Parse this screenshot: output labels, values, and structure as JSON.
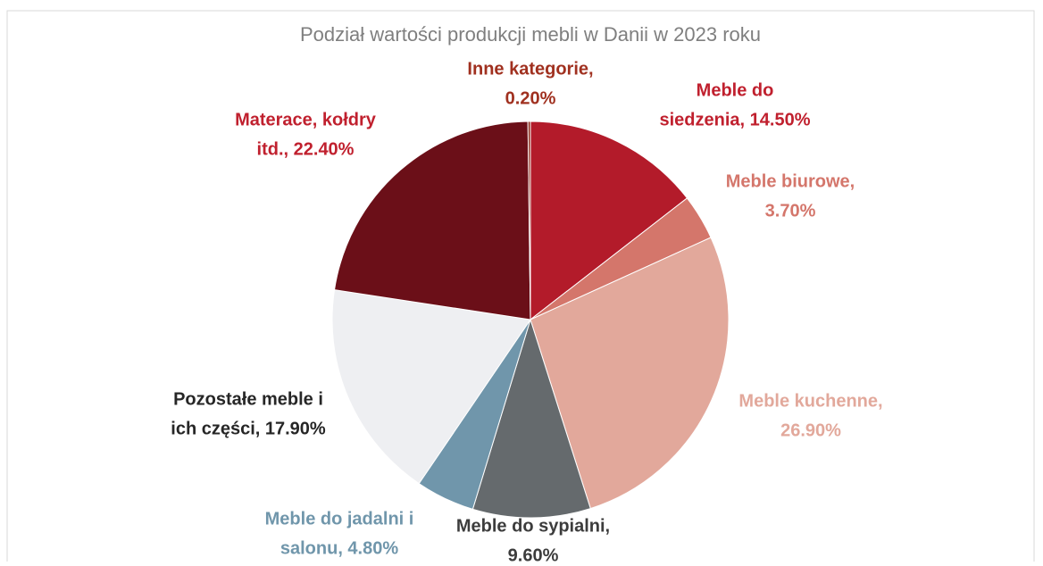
{
  "chart_data": {
    "type": "pie",
    "title": "Podział wartości produkcji mebli w Danii w 2023 roku",
    "values": [
      14.5,
      3.7,
      26.9,
      9.6,
      4.8,
      17.9,
      22.4,
      0.2
    ],
    "value_labels": [
      [
        "Meble do",
        "siedzenia, 14.50%"
      ],
      [
        "Meble biurowe,",
        "3.70%"
      ],
      [
        "Meble kuchenne,",
        "26.90%"
      ],
      [
        "Meble do sypialni,",
        "9.60%"
      ],
      [
        "Meble do jadalni i",
        "salonu, 4.80%"
      ],
      [
        "Pozostałe meble i",
        "ich części, 17.90%"
      ],
      [
        "Materace, kołdry",
        "itd., 22.40%"
      ],
      [
        "Inne kategorie,",
        "0.20%"
      ]
    ],
    "colors": [
      "#b31b2a",
      "#d4766b",
      "#e2a89b",
      "#656a6d",
      "#7096ab",
      "#eeeff2",
      "#6b0f18",
      "#8b2a1a"
    ],
    "label_colors": [
      "#c0202e",
      "#d4766b",
      "#e2a89b",
      "#3c3c3c",
      "#7096ab",
      "#262626",
      "#c0202e",
      "#a0301f"
    ]
  }
}
